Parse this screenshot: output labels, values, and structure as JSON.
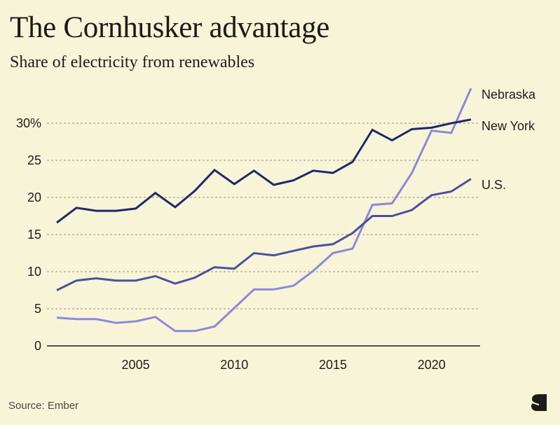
{
  "header": {
    "title": "The Cornhusker advantage",
    "subtitle": "Share of electricity from renewables"
  },
  "footer": {
    "source": "Source: Ember",
    "logo_icon": "publication-s-logo-icon"
  },
  "chart_data": {
    "type": "line",
    "title": "The Cornhusker advantage",
    "subtitle": "Share of electricity from renewables",
    "xlabel": "",
    "ylabel": "",
    "x": [
      2001,
      2002,
      2003,
      2004,
      2005,
      2006,
      2007,
      2008,
      2009,
      2010,
      2011,
      2012,
      2013,
      2014,
      2015,
      2016,
      2017,
      2018,
      2019,
      2020,
      2021,
      2022
    ],
    "xlim": [
      2000.5,
      2022.5
    ],
    "ylim": [
      0,
      35
    ],
    "x_ticks": [
      2005,
      2010,
      2015,
      2020
    ],
    "x_tick_labels": [
      "2005",
      "2010",
      "2015",
      "2020"
    ],
    "y_ticks": [
      0,
      5,
      10,
      15,
      20,
      25,
      30
    ],
    "y_tick_labels": [
      "0",
      "5",
      "10",
      "15",
      "20",
      "25",
      "30%"
    ],
    "grid": "horizontal dashed",
    "legend": "direct labels at right end of lines",
    "series": [
      {
        "name": "New York",
        "color": "#1f2868",
        "values": [
          16.6,
          18.6,
          18.2,
          18.2,
          18.5,
          20.6,
          18.7,
          20.9,
          23.7,
          21.8,
          23.6,
          21.7,
          22.3,
          23.6,
          23.3,
          24.8,
          29.1,
          27.7,
          29.2,
          29.4,
          30.0,
          30.5
        ]
      },
      {
        "name": "U.S.",
        "color": "#4c4fa1",
        "values": [
          7.5,
          8.8,
          9.1,
          8.8,
          8.8,
          9.4,
          8.4,
          9.2,
          10.6,
          10.4,
          12.5,
          12.2,
          12.8,
          13.4,
          13.7,
          15.2,
          17.5,
          17.5,
          18.3,
          20.3,
          20.8,
          22.5
        ]
      },
      {
        "name": "Nebraska",
        "color": "#8b89dc",
        "values": [
          3.8,
          3.6,
          3.6,
          3.1,
          3.3,
          3.9,
          2.0,
          2.0,
          2.6,
          5.1,
          7.6,
          7.6,
          8.1,
          10.1,
          12.5,
          13.1,
          19.0,
          19.2,
          23.3,
          29.0,
          28.7,
          34.7
        ]
      }
    ],
    "colors": {
      "background": "#f8f4d8",
      "gridline": "#a9a692",
      "axis": "#1f1d1a"
    }
  }
}
